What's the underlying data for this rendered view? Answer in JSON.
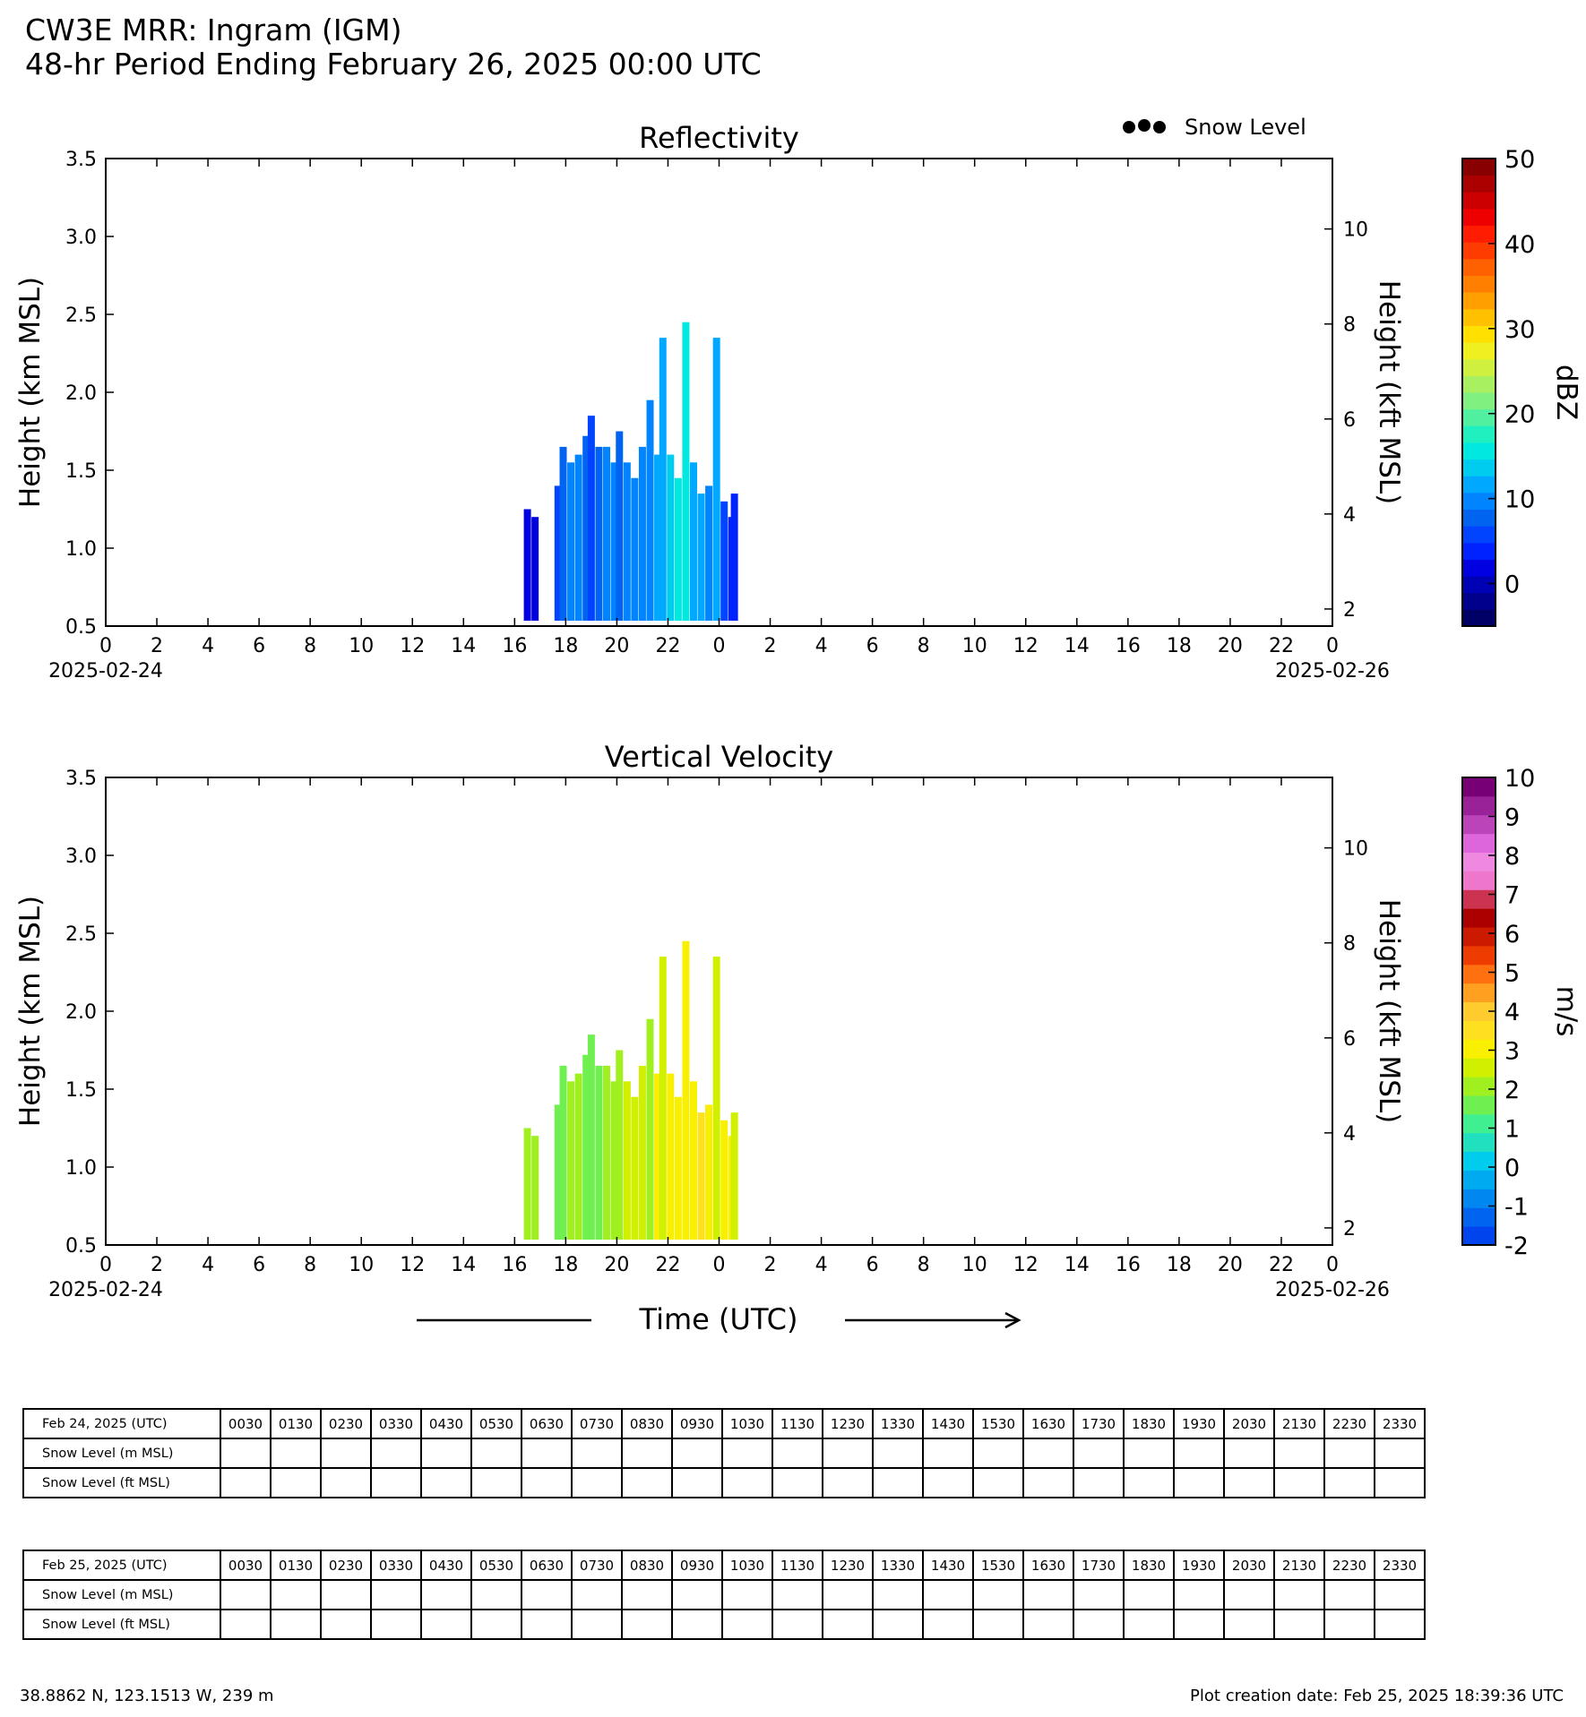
{
  "header": {
    "title_line1": "CW3E MRR: Ingram (IGM)",
    "title_line2": "48-hr Period Ending February 26, 2025 00:00 UTC"
  },
  "legend": {
    "snow_level_label": "Snow Level",
    "marker_color": "#000000"
  },
  "x_axis_shared": {
    "tick_labels": [
      "0",
      "2",
      "4",
      "6",
      "8",
      "10",
      "12",
      "14",
      "16",
      "18",
      "20",
      "22",
      "0",
      "2",
      "4",
      "6",
      "8",
      "10",
      "12",
      "14",
      "16",
      "18",
      "20",
      "22",
      "0"
    ],
    "start_date": "2025-02-24",
    "end_date": "2025-02-26",
    "xlabel": "Time (UTC)"
  },
  "chart_data": [
    {
      "type": "heatmap",
      "title": "Reflectivity",
      "ylabel": "Height (km MSL)",
      "y2label": "Height (kft MSL)",
      "ylim": [
        0.5,
        3.5
      ],
      "y_ticks": [
        "0.5",
        "1.0",
        "1.5",
        "2.0",
        "2.5",
        "3.0",
        "3.5"
      ],
      "y2_ticks": [
        "2",
        "4",
        "6",
        "8",
        "10"
      ],
      "xlim_hours": [
        0,
        48
      ],
      "colorbar": {
        "label": "dBZ",
        "range": [
          -5,
          50
        ],
        "ticks": [
          "0",
          "10",
          "20",
          "30",
          "40",
          "50"
        ],
        "colors": [
          "#000066",
          "#00008c",
          "#0000b4",
          "#0000e0",
          "#0022ff",
          "#0044ff",
          "#0064f0",
          "#0084ff",
          "#00a8ff",
          "#00ccf0",
          "#00e8e0",
          "#20f0c0",
          "#50f0a0",
          "#80f080",
          "#a8f060",
          "#d0f040",
          "#f0f020",
          "#ffe000",
          "#ffc000",
          "#ffa000",
          "#ff8000",
          "#ff6000",
          "#ff3c00",
          "#ff1c00",
          "#ee0000",
          "#cc0000",
          "#aa0000",
          "#880000"
        ]
      },
      "echo_columns": [
        {
          "hour": 16.5,
          "top_km": 1.25,
          "dbz": 2
        },
        {
          "hour": 16.8,
          "top_km": 1.2,
          "dbz": 2
        },
        {
          "hour": 17.7,
          "top_km": 1.4,
          "dbz": 5
        },
        {
          "hour": 17.9,
          "top_km": 1.65,
          "dbz": 7
        },
        {
          "hour": 18.2,
          "top_km": 1.55,
          "dbz": 10
        },
        {
          "hour": 18.5,
          "top_km": 1.6,
          "dbz": 10
        },
        {
          "hour": 18.8,
          "top_km": 1.72,
          "dbz": 8
        },
        {
          "hour": 19.0,
          "top_km": 1.85,
          "dbz": 6
        },
        {
          "hour": 19.3,
          "top_km": 1.65,
          "dbz": 8
        },
        {
          "hour": 19.6,
          "top_km": 1.65,
          "dbz": 9
        },
        {
          "hour": 19.9,
          "top_km": 1.55,
          "dbz": 10
        },
        {
          "hour": 20.1,
          "top_km": 1.75,
          "dbz": 8
        },
        {
          "hour": 20.4,
          "top_km": 1.55,
          "dbz": 9
        },
        {
          "hour": 20.7,
          "top_km": 1.45,
          "dbz": 10
        },
        {
          "hour": 21.0,
          "top_km": 1.65,
          "dbz": 10
        },
        {
          "hour": 21.3,
          "top_km": 1.95,
          "dbz": 9
        },
        {
          "hour": 21.6,
          "top_km": 1.6,
          "dbz": 11
        },
        {
          "hour": 21.8,
          "top_km": 2.35,
          "dbz": 12
        },
        {
          "hour": 22.1,
          "top_km": 1.6,
          "dbz": 13
        },
        {
          "hour": 22.4,
          "top_km": 1.45,
          "dbz": 15
        },
        {
          "hour": 22.7,
          "top_km": 2.45,
          "dbz": 16
        },
        {
          "hour": 23.0,
          "top_km": 1.55,
          "dbz": 12
        },
        {
          "hour": 23.3,
          "top_km": 1.35,
          "dbz": 12
        },
        {
          "hour": 23.6,
          "top_km": 1.4,
          "dbz": 10
        },
        {
          "hour": 23.9,
          "top_km": 2.35,
          "dbz": 12
        },
        {
          "hour": 24.2,
          "top_km": 1.3,
          "dbz": 6
        },
        {
          "hour": 24.5,
          "top_km": 1.2,
          "dbz": 4
        },
        {
          "hour": 24.6,
          "top_km": 1.35,
          "dbz": 4
        }
      ]
    },
    {
      "type": "heatmap",
      "title": "Vertical Velocity",
      "ylabel": "Height (km MSL)",
      "y2label": "Height (kft MSL)",
      "ylim": [
        0.5,
        3.5
      ],
      "y_ticks": [
        "0.5",
        "1.0",
        "1.5",
        "2.0",
        "2.5",
        "3.0",
        "3.5"
      ],
      "y2_ticks": [
        "2",
        "4",
        "6",
        "8",
        "10"
      ],
      "xlim_hours": [
        0,
        48
      ],
      "colorbar": {
        "label": "m/s",
        "range": [
          -2,
          10
        ],
        "ticks": [
          "-2",
          "-1",
          "0",
          "1",
          "2",
          "3",
          "4",
          "5",
          "6",
          "7",
          "8",
          "9",
          "10"
        ],
        "colors": [
          "#0044ee",
          "#0064f0",
          "#0088f0",
          "#00aaf0",
          "#00ccee",
          "#20e0c0",
          "#40f090",
          "#70f050",
          "#a0f020",
          "#d0f000",
          "#f8f000",
          "#ffe020",
          "#ffcc30",
          "#ffa020",
          "#ff7010",
          "#ee3c00",
          "#cc1a00",
          "#aa0000",
          "#cc3350",
          "#ee77cc",
          "#ee88e0",
          "#dd66dd",
          "#bb44bb",
          "#992299",
          "#770077"
        ]
      },
      "echo_columns": [
        {
          "hour": 16.5,
          "top_km": 1.25,
          "ms": 2.3
        },
        {
          "hour": 16.8,
          "top_km": 1.2,
          "ms": 2.3
        },
        {
          "hour": 17.7,
          "top_km": 1.4,
          "ms": 1.8
        },
        {
          "hour": 17.9,
          "top_km": 1.65,
          "ms": 1.6
        },
        {
          "hour": 18.2,
          "top_km": 1.55,
          "ms": 2.0
        },
        {
          "hour": 18.5,
          "top_km": 1.6,
          "ms": 2.2
        },
        {
          "hour": 18.8,
          "top_km": 1.72,
          "ms": 1.7
        },
        {
          "hour": 19.0,
          "top_km": 1.85,
          "ms": 1.6
        },
        {
          "hour": 19.3,
          "top_km": 1.65,
          "ms": 1.8
        },
        {
          "hour": 19.6,
          "top_km": 1.65,
          "ms": 2.0
        },
        {
          "hour": 19.9,
          "top_km": 1.55,
          "ms": 2.3
        },
        {
          "hour": 20.1,
          "top_km": 1.75,
          "ms": 2.0
        },
        {
          "hour": 20.4,
          "top_km": 1.55,
          "ms": 2.4
        },
        {
          "hour": 20.7,
          "top_km": 1.45,
          "ms": 2.6
        },
        {
          "hour": 21.0,
          "top_km": 1.65,
          "ms": 2.5
        },
        {
          "hour": 21.3,
          "top_km": 1.95,
          "ms": 2.2
        },
        {
          "hour": 21.6,
          "top_km": 1.6,
          "ms": 2.8
        },
        {
          "hour": 21.8,
          "top_km": 2.35,
          "ms": 2.6
        },
        {
          "hour": 22.1,
          "top_km": 1.6,
          "ms": 3.0
        },
        {
          "hour": 22.4,
          "top_km": 1.45,
          "ms": 3.1
        },
        {
          "hour": 22.7,
          "top_km": 2.45,
          "ms": 2.8
        },
        {
          "hour": 23.0,
          "top_km": 1.55,
          "ms": 3.2
        },
        {
          "hour": 23.3,
          "top_km": 1.35,
          "ms": 3.3
        },
        {
          "hour": 23.6,
          "top_km": 1.4,
          "ms": 3.0
        },
        {
          "hour": 23.9,
          "top_km": 2.35,
          "ms": 2.7
        },
        {
          "hour": 24.2,
          "top_km": 1.3,
          "ms": 3.2
        },
        {
          "hour": 24.5,
          "top_km": 1.2,
          "ms": 2.8
        },
        {
          "hour": 24.6,
          "top_km": 1.35,
          "ms": 2.6
        }
      ]
    }
  ],
  "tables": [
    {
      "date_label": "Feb 24, 2025 (UTC)",
      "row_labels": [
        "Snow Level (m MSL)",
        "Snow Level (ft MSL)"
      ],
      "times": [
        "0030",
        "0130",
        "0230",
        "0330",
        "0430",
        "0530",
        "0630",
        "0730",
        "0830",
        "0930",
        "1030",
        "1130",
        "1230",
        "1330",
        "1430",
        "1530",
        "1630",
        "1730",
        "1830",
        "1930",
        "2030",
        "2130",
        "2230",
        "2330"
      ]
    },
    {
      "date_label": "Feb 25, 2025 (UTC)",
      "row_labels": [
        "Snow Level (m MSL)",
        "Snow Level (ft MSL)"
      ],
      "times": [
        "0030",
        "0130",
        "0230",
        "0330",
        "0430",
        "0530",
        "0630",
        "0730",
        "0830",
        "0930",
        "1030",
        "1130",
        "1230",
        "1330",
        "1430",
        "1530",
        "1630",
        "1730",
        "1830",
        "1930",
        "2030",
        "2130",
        "2230",
        "2330"
      ]
    }
  ],
  "footer": {
    "location": "38.8862 N, 123.1513 W, 239 m",
    "creation": "Plot creation date: Feb 25, 2025 18:39:36 UTC"
  }
}
